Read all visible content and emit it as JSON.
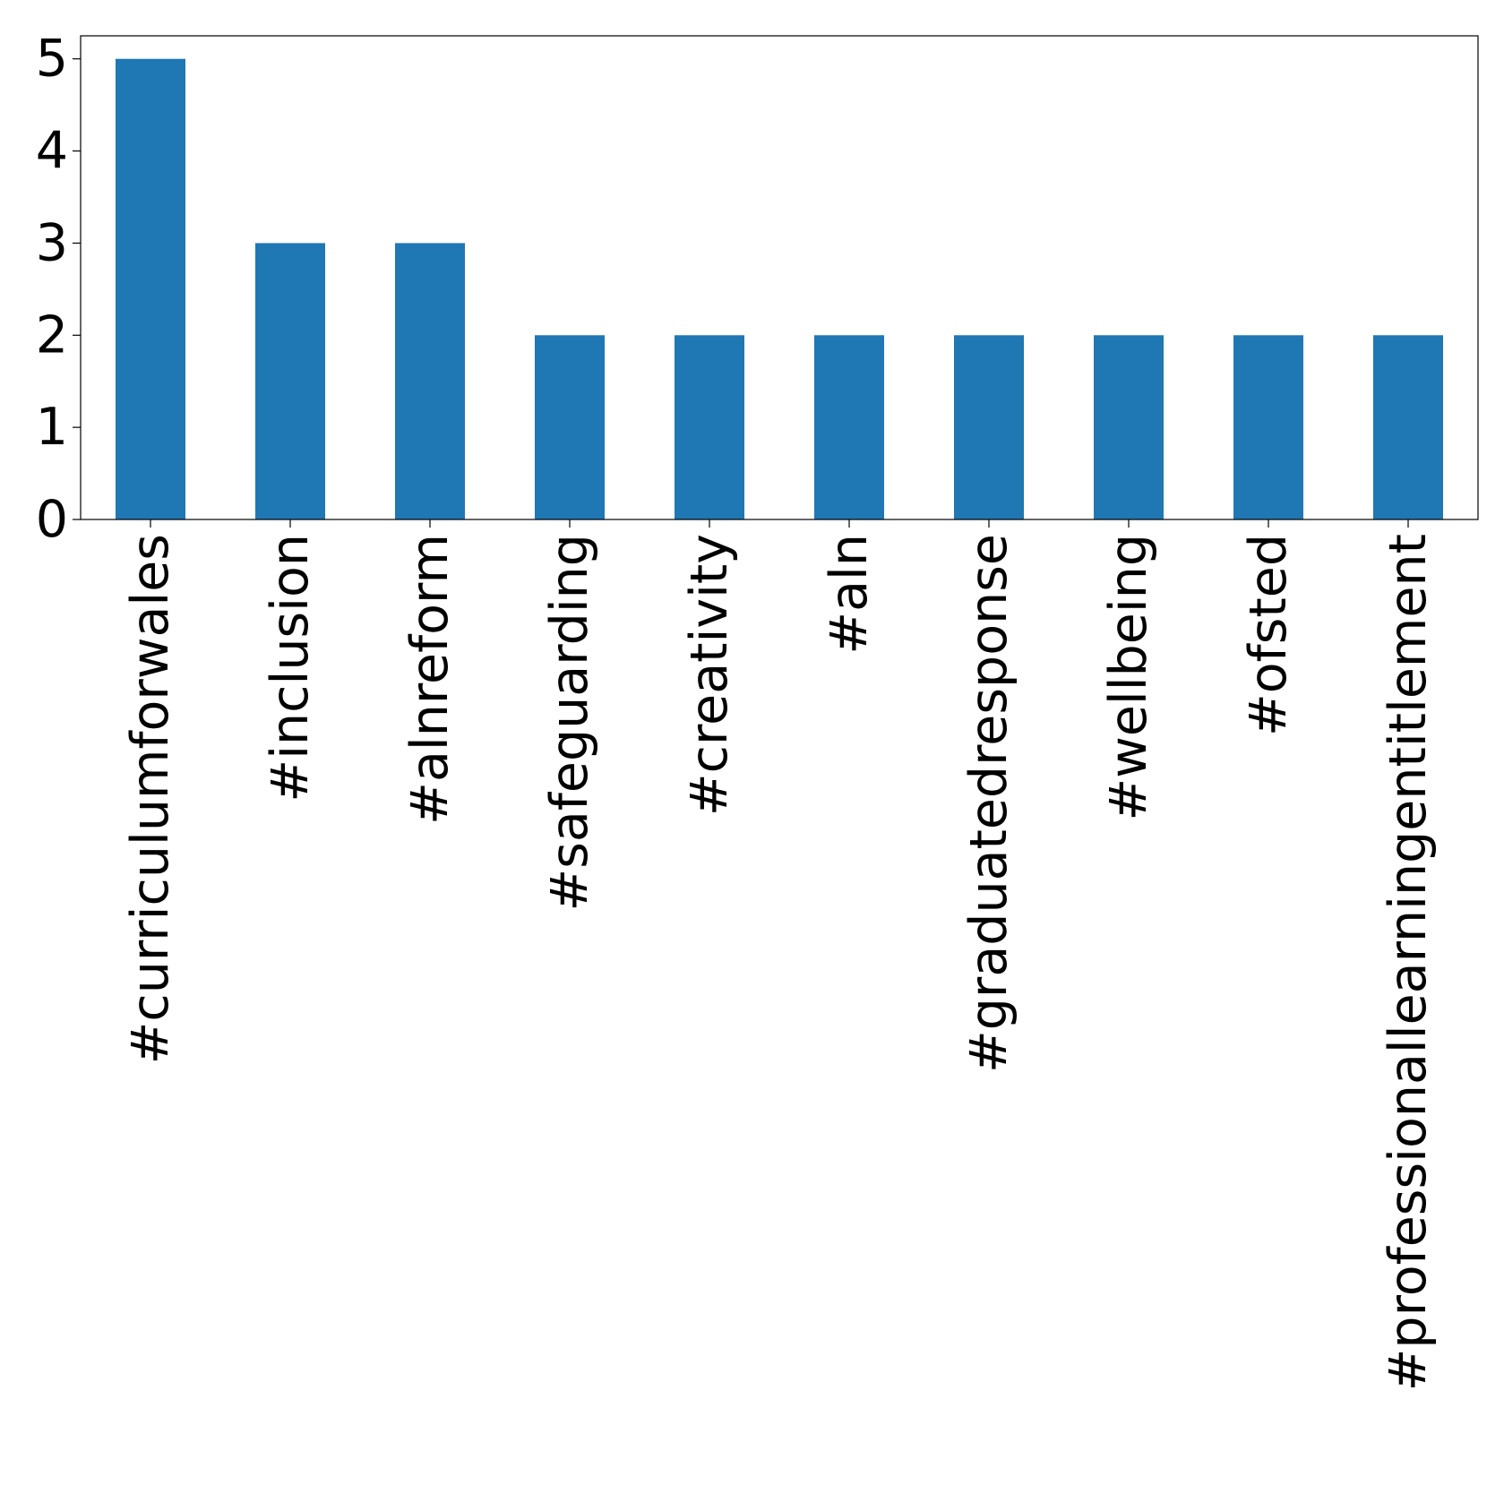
{
  "chart_data": {
    "type": "bar",
    "title": "",
    "xlabel": "",
    "ylabel": "",
    "categories": [
      "#curriculumforwales",
      "#inclusion",
      "#alnreform",
      "#safeguarding",
      "#creativity",
      "#aln",
      "#graduatedresponse",
      "#wellbeing",
      "#ofsted",
      "#professionallearningentitlement"
    ],
    "values": [
      5,
      3,
      3,
      2,
      2,
      2,
      2,
      2,
      2,
      2
    ],
    "ylim": [
      0,
      5.25
    ],
    "yticks": [
      0,
      1,
      2,
      3,
      4,
      5
    ],
    "ytick_labels": [
      "0",
      "1",
      "2",
      "3",
      "4",
      "5"
    ],
    "bar_color": "#1f77b4",
    "grid": false,
    "legend": "none",
    "xtick_rotation": "vertical"
  }
}
